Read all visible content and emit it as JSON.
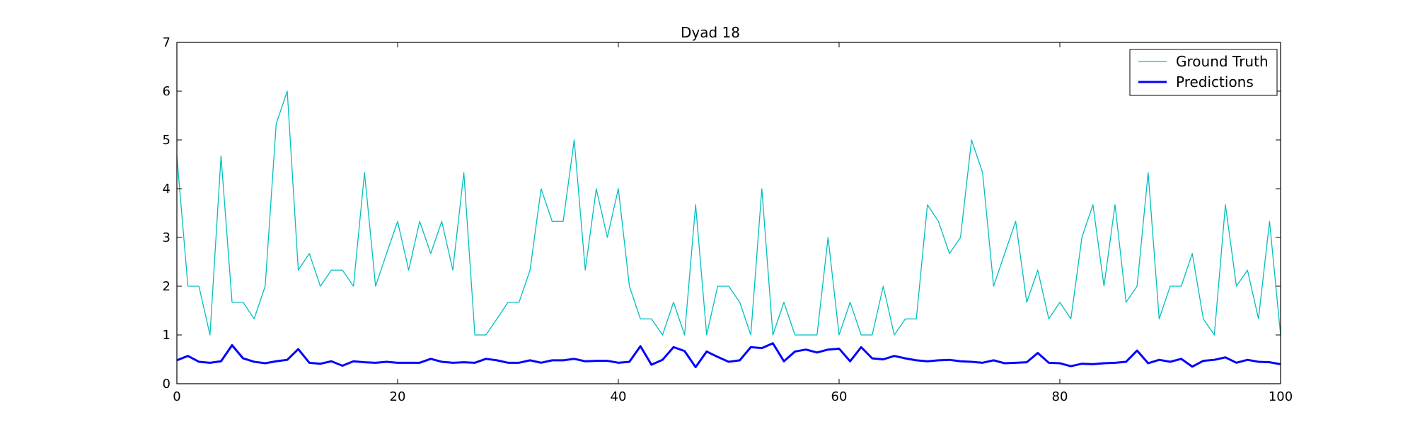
{
  "chart_data": {
    "type": "line",
    "title": "Dyad 18",
    "xlabel": "",
    "ylabel": "",
    "xlim": [
      0,
      100
    ],
    "ylim": [
      0,
      7
    ],
    "xticks": [
      0,
      20,
      40,
      60,
      80,
      100
    ],
    "yticks": [
      0,
      1,
      2,
      3,
      4,
      5,
      6,
      7
    ],
    "grid": false,
    "legend_position": "top-right",
    "x": [
      0,
      1,
      2,
      3,
      4,
      5,
      6,
      7,
      8,
      9,
      10,
      11,
      12,
      13,
      14,
      15,
      16,
      17,
      18,
      19,
      20,
      21,
      22,
      23,
      24,
      25,
      26,
      27,
      28,
      29,
      30,
      31,
      32,
      33,
      34,
      35,
      36,
      37,
      38,
      39,
      40,
      41,
      42,
      43,
      44,
      45,
      46,
      47,
      48,
      49,
      50,
      51,
      52,
      53,
      54,
      55,
      56,
      57,
      58,
      59,
      60,
      61,
      62,
      63,
      64,
      65,
      66,
      67,
      68,
      69,
      70,
      71,
      72,
      73,
      74,
      75,
      76,
      77,
      78,
      79,
      80,
      81,
      82,
      83,
      84,
      85,
      86,
      87,
      88,
      89,
      90,
      91,
      92,
      93,
      94,
      95,
      96,
      97,
      98,
      99,
      100
    ],
    "series": [
      {
        "name": "Ground Truth",
        "color": "#00bfbf",
        "values": [
          4.67,
          2,
          2,
          1,
          4.67,
          1.67,
          1.67,
          1.33,
          2,
          5.33,
          6,
          2.33,
          2.67,
          2,
          2.33,
          2.33,
          2,
          4.33,
          2,
          2.67,
          3.33,
          2.33,
          3.33,
          2.67,
          3.33,
          2.33,
          4.33,
          1,
          1,
          1.33,
          1.67,
          1.67,
          2.33,
          4,
          3.33,
          3.33,
          5,
          2.33,
          4,
          3,
          4,
          2,
          1.33,
          1.33,
          1,
          1.67,
          1,
          3.67,
          1,
          2,
          2,
          1.67,
          1,
          4,
          1,
          1.67,
          1,
          1,
          1,
          3,
          1,
          1.67,
          1,
          1,
          2,
          1,
          1.33,
          1.33,
          3.67,
          3.33,
          2.67,
          3,
          5,
          4.33,
          2,
          2.67,
          3.33,
          1.67,
          2.33,
          1.33,
          1.67,
          1.33,
          3,
          3.67,
          2,
          3.67,
          1.67,
          2,
          4.33,
          1.33,
          2,
          2,
          2.67,
          1.33,
          1,
          3.67,
          2,
          2.33,
          1.33,
          3.33,
          1
        ]
      },
      {
        "name": "Predictions",
        "color": "#0000ff",
        "values": [
          0.48,
          0.57,
          0.45,
          0.43,
          0.46,
          0.79,
          0.52,
          0.45,
          0.42,
          0.46,
          0.49,
          0.71,
          0.43,
          0.41,
          0.46,
          0.37,
          0.46,
          0.44,
          0.43,
          0.45,
          0.43,
          0.43,
          0.43,
          0.51,
          0.45,
          0.43,
          0.44,
          0.43,
          0.51,
          0.48,
          0.43,
          0.43,
          0.48,
          0.43,
          0.48,
          0.48,
          0.51,
          0.46,
          0.47,
          0.47,
          0.43,
          0.45,
          0.77,
          0.39,
          0.49,
          0.75,
          0.67,
          0.34,
          0.66,
          0.55,
          0.45,
          0.48,
          0.75,
          0.73,
          0.83,
          0.46,
          0.66,
          0.7,
          0.64,
          0.7,
          0.72,
          0.46,
          0.75,
          0.52,
          0.5,
          0.57,
          0.52,
          0.48,
          0.46,
          0.48,
          0.49,
          0.46,
          0.45,
          0.43,
          0.48,
          0.42,
          0.43,
          0.44,
          0.63,
          0.43,
          0.42,
          0.36,
          0.41,
          0.4,
          0.42,
          0.43,
          0.45,
          0.68,
          0.42,
          0.49,
          0.45,
          0.51,
          0.35,
          0.47,
          0.49,
          0.54,
          0.43,
          0.49,
          0.45,
          0.44,
          0.4
        ]
      }
    ]
  }
}
